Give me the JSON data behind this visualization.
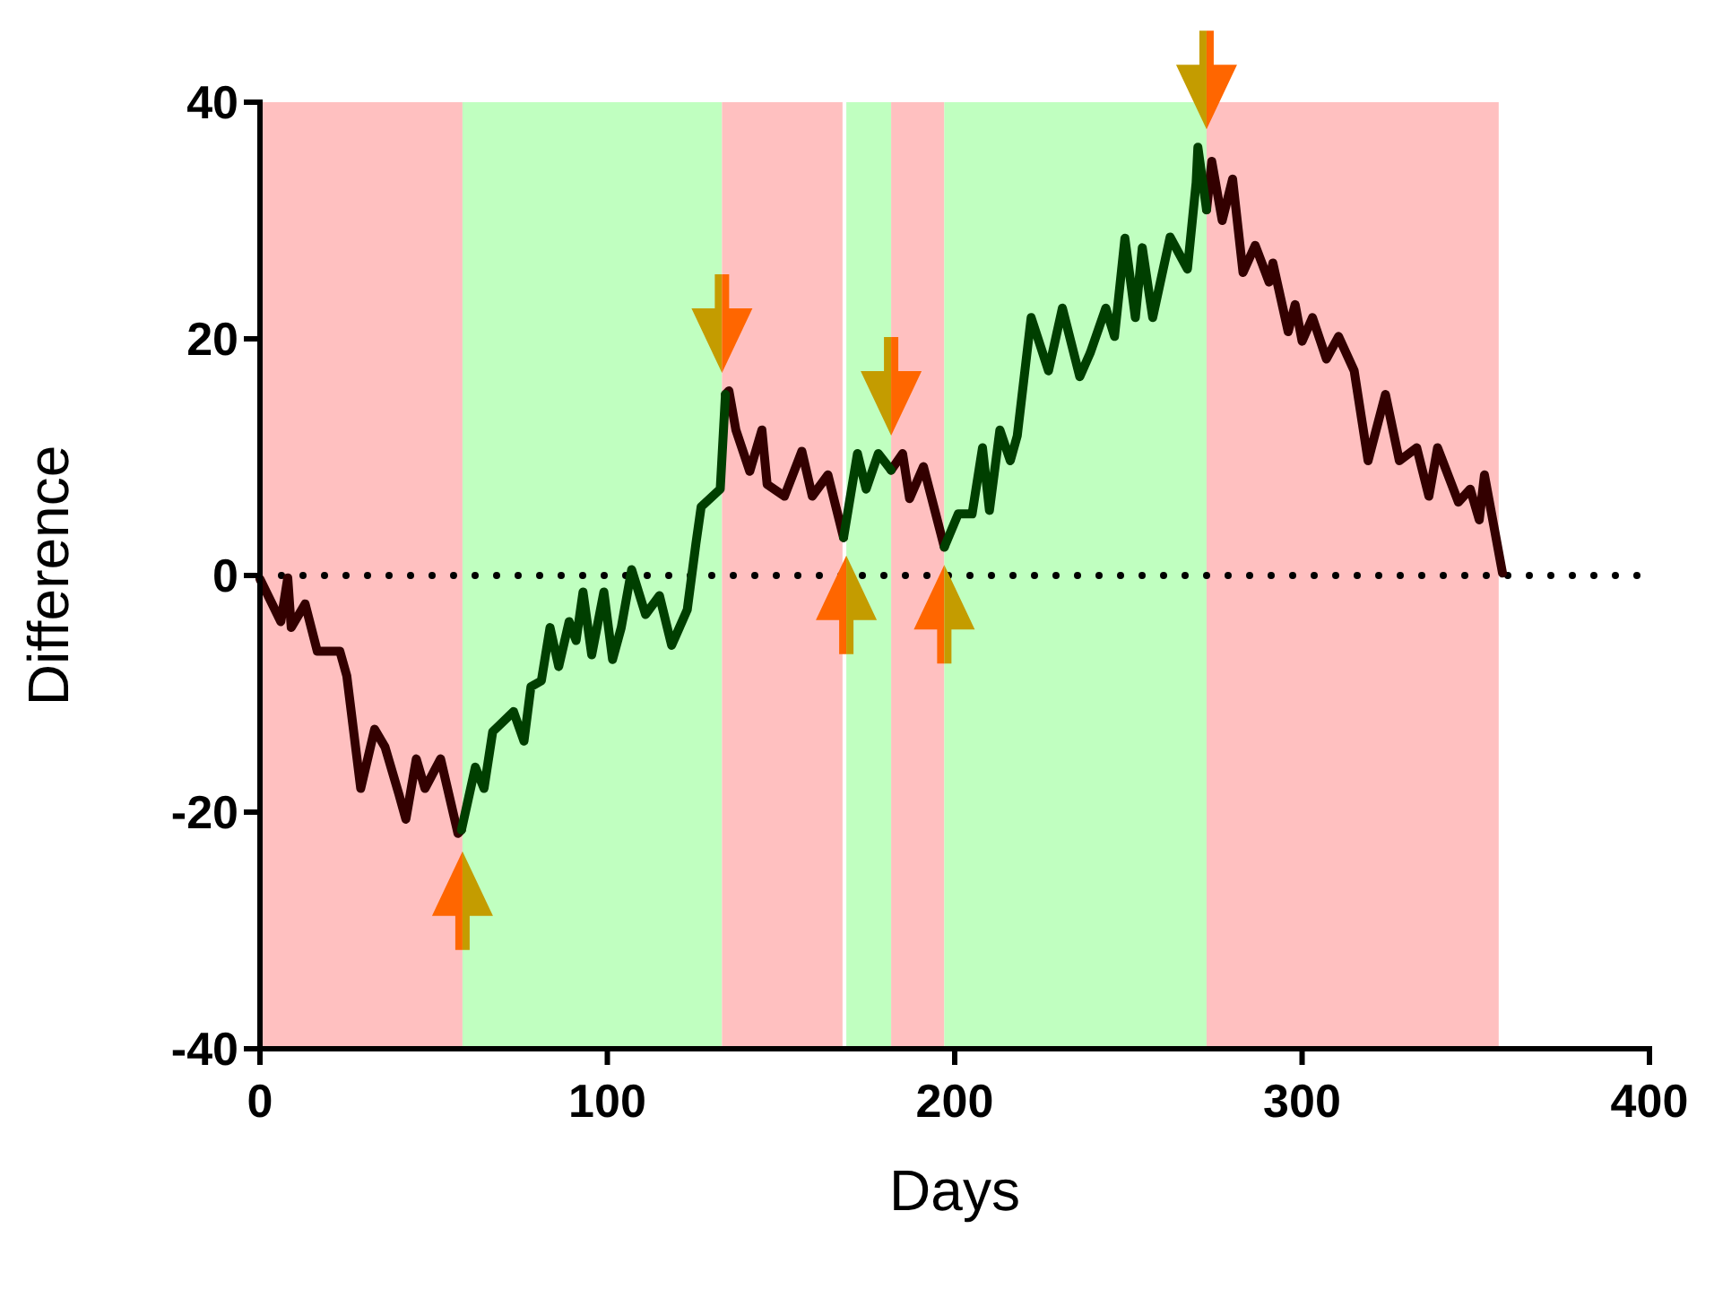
{
  "chart_data": {
    "type": "line",
    "xlabel": "Days",
    "ylabel": "Difference",
    "xlim": [
      0,
      400
    ],
    "xticks": [
      0,
      100,
      200,
      300,
      400
    ],
    "ylim": [
      -40,
      40
    ],
    "yticks": [
      -40,
      -20,
      0,
      20,
      40
    ],
    "grid": false,
    "line_style": "solid",
    "marker": "none",
    "series": [
      {
        "color": "#330000",
        "x": [
          0,
          6,
          8,
          9,
          13,
          16.5,
          23,
          25,
          29,
          33,
          36,
          40,
          42,
          45,
          47.5,
          52,
          57,
          58,
          96,
          134,
          135,
          137,
          141,
          144.5,
          146,
          151,
          156,
          159,
          163.5,
          168,
          175,
          181.7,
          185,
          187,
          191,
          197,
          235,
          272.5,
          274,
          277,
          280,
          283,
          286.5,
          290.5,
          291.6,
          296,
          298,
          300,
          303,
          307,
          310.5,
          315,
          319,
          324,
          328,
          333,
          336.5,
          339,
          345,
          348.4,
          351,
          352.5,
          357.7
        ],
        "values": [
          -0.3,
          -3.9,
          -0.2,
          -4.4,
          -2.4,
          -6.4,
          -6.4,
          -8.5,
          -18,
          -13,
          -14.5,
          -18.5,
          -20.6,
          -15.5,
          -18,
          -15.5,
          -21.8,
          -21.5,
          null,
          15.3,
          15.6,
          12.3,
          8.8,
          12.3,
          7.7,
          6.7,
          10.5,
          6.7,
          8.5,
          3.2,
          null,
          8.9,
          10.3,
          6.5,
          9.2,
          2.4,
          null,
          30.9,
          35,
          30,
          33.5,
          25.6,
          27.9,
          24.8,
          26.4,
          20.6,
          22.9,
          19.8,
          21.8,
          18.3,
          20.2,
          17.3,
          9.7,
          15.3,
          9.7,
          10.8,
          6.7,
          10.8,
          6.2,
          7.3,
          4.7,
          8.5,
          0.2
        ]
      },
      {
        "color": "#003f00",
        "x": [
          58,
          62,
          64.5,
          67,
          73,
          76,
          78,
          81,
          83.5,
          86,
          89,
          91,
          93,
          95.5,
          99,
          101.5,
          104,
          107,
          111,
          115,
          118.5,
          123,
          125.5,
          127,
          132.5,
          134,
          151,
          168,
          172,
          174.5,
          178,
          181.7,
          190,
          197,
          201,
          205,
          208,
          210,
          213,
          216,
          218,
          222,
          227,
          231,
          236,
          239,
          243.5,
          246,
          249,
          252,
          254,
          257,
          262,
          267,
          269.5,
          270,
          272.5
        ],
        "values": [
          -21.5,
          -16.2,
          -18,
          -13.2,
          -11.5,
          -14,
          -9.4,
          -8.9,
          -4.4,
          -7.7,
          -3.9,
          -5.5,
          -1.4,
          -6.7,
          -1.4,
          -7.1,
          -4.4,
          0.5,
          -3.3,
          -1.7,
          -5.9,
          -2.9,
          2.7,
          5.8,
          7.3,
          15.3,
          null,
          3.2,
          10.3,
          7.3,
          10.3,
          8.9,
          null,
          2.4,
          5.2,
          5.2,
          10.8,
          5.5,
          12.3,
          9.7,
          11.8,
          21.8,
          17.3,
          22.6,
          16.8,
          18.8,
          22.6,
          20.2,
          28.5,
          21.8,
          27.7,
          21.8,
          28.6,
          25.9,
          33.2,
          36.2,
          30.9
        ]
      }
    ],
    "bands": [
      {
        "axis": "x",
        "from": 0,
        "to": 58.3,
        "color": "#ffc0c0"
      },
      {
        "axis": "x",
        "from": 58.3,
        "to": 133,
        "color": "#c0ffc0"
      },
      {
        "axis": "x",
        "from": 133,
        "to": 167.7,
        "color": "#ffc0c0"
      },
      {
        "axis": "x",
        "from": 168.8,
        "to": 181.7,
        "color": "#c0ffc0"
      },
      {
        "axis": "x",
        "from": 181.7,
        "to": 197,
        "color": "#ffc0c0"
      },
      {
        "axis": "x",
        "from": 197,
        "to": 272.5,
        "color": "#c0ffc0"
      },
      {
        "axis": "x",
        "from": 272.5,
        "to": 356.6,
        "color": "#ffc0c0"
      }
    ],
    "ref_lines": [
      {
        "axis": "y",
        "value": 0,
        "color": "#000000",
        "line_style": "dotted"
      }
    ]
  }
}
